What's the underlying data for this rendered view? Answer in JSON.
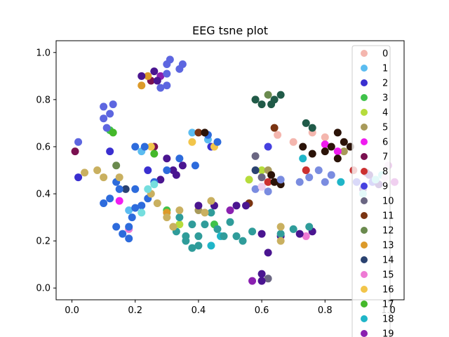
{
  "chart_data": {
    "type": "scatter",
    "title": "EEG tsne plot",
    "xlabel": "",
    "ylabel": "",
    "xlim": [
      -0.05,
      1.05
    ],
    "ylim": [
      -0.05,
      1.05
    ],
    "xticks": [
      "0.0",
      "0.2",
      "0.4",
      "0.6",
      "0.8",
      "1.0"
    ],
    "yticks": [
      "0.0",
      "0.2",
      "0.4",
      "0.6",
      "0.8",
      "1.0"
    ],
    "grid": false,
    "legend_position": "right",
    "series": [
      {
        "name": "0",
        "color": "#f4b6ae",
        "points": [
          [
            0.65,
            0.65
          ],
          [
            0.7,
            0.62
          ],
          [
            0.76,
            0.66
          ],
          [
            0.8,
            0.64
          ]
        ]
      },
      {
        "name": "1",
        "color": "#5bbcf0",
        "points": [
          [
            0.38,
            0.66
          ],
          [
            0.43,
            0.63
          ],
          [
            0.22,
            0.58
          ],
          [
            0.18,
            0.33
          ]
        ]
      },
      {
        "name": "2",
        "color": "#3a2fd0",
        "points": [
          [
            0.12,
            0.58
          ],
          [
            0.24,
            0.5
          ],
          [
            0.44,
            0.6
          ],
          [
            0.02,
            0.47
          ]
        ]
      },
      {
        "name": "3",
        "color": "#3fc24a",
        "points": [
          [
            0.12,
            0.67
          ],
          [
            0.3,
            0.33
          ],
          [
            0.45,
            0.27
          ]
        ]
      },
      {
        "name": "4",
        "color": "#b6dc3c",
        "points": [
          [
            0.56,
            0.46
          ],
          [
            0.6,
            0.5
          ],
          [
            0.34,
            0.27
          ]
        ]
      },
      {
        "name": "5",
        "color": "#a89a5a",
        "points": [
          [
            0.62,
            0.5
          ],
          [
            0.86,
            0.58
          ],
          [
            0.4,
            0.33
          ]
        ]
      },
      {
        "name": "6",
        "color": "#f01cf0",
        "points": [
          [
            0.8,
            0.61
          ],
          [
            0.84,
            0.58
          ],
          [
            0.15,
            0.37
          ]
        ]
      },
      {
        "name": "7",
        "color": "#7a1050",
        "points": [
          [
            0.25,
            0.88
          ],
          [
            0.26,
            0.6
          ],
          [
            0.93,
            0.49
          ],
          [
            0.01,
            0.58
          ]
        ]
      },
      {
        "name": "8",
        "color": "#cc3030",
        "points": [
          [
            0.89,
            0.5
          ],
          [
            0.74,
            0.5
          ],
          [
            0.62,
            0.45
          ]
        ]
      },
      {
        "name": "9",
        "color": "#4540e0",
        "points": [
          [
            0.9,
            0.45
          ],
          [
            0.95,
            0.45
          ],
          [
            0.62,
            0.6
          ]
        ]
      },
      {
        "name": "10",
        "color": "#6a6682",
        "points": [
          [
            0.6,
            0.47
          ],
          [
            0.62,
            0.04
          ],
          [
            0.58,
            0.56
          ]
        ]
      },
      {
        "name": "11",
        "color": "#7a3412",
        "points": [
          [
            0.64,
            0.68
          ],
          [
            0.4,
            0.66
          ],
          [
            0.56,
            0.36
          ]
        ]
      },
      {
        "name": "12",
        "color": "#6a8a4e",
        "points": [
          [
            0.58,
            0.8
          ],
          [
            0.62,
            0.82
          ],
          [
            0.14,
            0.52
          ]
        ]
      },
      {
        "name": "13",
        "color": "#dc9a2a",
        "points": [
          [
            0.24,
            0.9
          ],
          [
            0.22,
            0.86
          ],
          [
            0.3,
            0.32
          ]
        ]
      },
      {
        "name": "14",
        "color": "#2a4270",
        "points": [
          [
            0.17,
            0.42
          ],
          [
            0.58,
            0.5
          ]
        ]
      },
      {
        "name": "15",
        "color": "#ee7ad4",
        "points": [
          [
            0.6,
            0.03
          ],
          [
            0.74,
            0.22
          ],
          [
            0.18,
            0.25
          ]
        ]
      },
      {
        "name": "16",
        "color": "#f2c54a",
        "points": [
          [
            0.45,
            0.6
          ],
          [
            0.38,
            0.62
          ],
          [
            0.25,
            0.6
          ]
        ]
      },
      {
        "name": "17",
        "color": "#44b82a",
        "points": [
          [
            0.13,
            0.66
          ],
          [
            0.26,
            0.57
          ]
        ]
      },
      {
        "name": "18",
        "color": "#1fb5c8",
        "points": [
          [
            0.47,
            0.22
          ],
          [
            0.44,
            0.18
          ],
          [
            0.73,
            0.55
          ],
          [
            0.85,
            0.45
          ]
        ]
      },
      {
        "name": "19",
        "color": "#8a20b0",
        "points": [
          [
            0.28,
            0.9
          ],
          [
            0.57,
            0.03
          ],
          [
            0.5,
            0.33
          ]
        ]
      },
      {
        "name": "",
        "color": "#205a48",
        "points": [
          [
            0.6,
            0.78
          ],
          [
            0.63,
            0.78
          ],
          [
            0.58,
            0.8
          ],
          [
            0.74,
            0.7
          ],
          [
            0.76,
            0.68
          ],
          [
            0.64,
            0.8
          ],
          [
            0.66,
            0.82
          ]
        ]
      },
      {
        "name": "",
        "color": "#5d66e0",
        "points": [
          [
            0.31,
            0.97
          ],
          [
            0.3,
            0.95
          ],
          [
            0.3,
            0.91
          ],
          [
            0.3,
            0.86
          ],
          [
            0.35,
            0.95
          ],
          [
            0.28,
            0.85
          ],
          [
            0.34,
            0.93
          ],
          [
            0.13,
            0.78
          ],
          [
            0.12,
            0.74
          ],
          [
            0.1,
            0.77
          ],
          [
            0.1,
            0.72
          ],
          [
            0.11,
            0.68
          ],
          [
            0.02,
            0.62
          ]
        ]
      },
      {
        "name": "",
        "color": "#4a1590",
        "points": [
          [
            0.22,
            0.9
          ],
          [
            0.26,
            0.92
          ],
          [
            0.27,
            0.88
          ],
          [
            0.4,
            0.35
          ],
          [
            0.45,
            0.35
          ],
          [
            0.52,
            0.35
          ],
          [
            0.55,
            0.35
          ],
          [
            0.6,
            0.23
          ],
          [
            0.66,
            0.22
          ],
          [
            0.72,
            0.23
          ],
          [
            0.76,
            0.24
          ],
          [
            0.62,
            0.15
          ],
          [
            0.6,
            0.06
          ],
          [
            0.6,
            0.03
          ],
          [
            0.97,
            0.44
          ],
          [
            0.94,
            0.48
          ],
          [
            0.92,
            0.42
          ],
          [
            0.28,
            0.46
          ],
          [
            0.32,
            0.5
          ],
          [
            0.35,
            0.52
          ],
          [
            0.3,
            0.55
          ],
          [
            0.33,
            0.48
          ]
        ]
      },
      {
        "name": "",
        "color": "#2d6bdc",
        "points": [
          [
            0.18,
            0.26
          ],
          [
            0.16,
            0.23
          ],
          [
            0.14,
            0.26
          ],
          [
            0.18,
            0.21
          ],
          [
            0.19,
            0.3
          ],
          [
            0.2,
            0.34
          ],
          [
            0.22,
            0.35
          ],
          [
            0.24,
            0.38
          ],
          [
            0.2,
            0.42
          ],
          [
            0.26,
            0.45
          ],
          [
            0.3,
            0.5
          ],
          [
            0.34,
            0.55
          ],
          [
            0.43,
            0.65
          ],
          [
            0.46,
            0.62
          ],
          [
            0.39,
            0.52
          ],
          [
            0.15,
            0.42
          ],
          [
            0.14,
            0.45
          ],
          [
            0.1,
            0.36
          ],
          [
            0.12,
            0.38
          ],
          [
            0.2,
            0.6
          ],
          [
            0.23,
            0.6
          ]
        ]
      },
      {
        "name": "",
        "color": "#2f9c9a",
        "points": [
          [
            0.34,
            0.3
          ],
          [
            0.36,
            0.22
          ],
          [
            0.38,
            0.17
          ],
          [
            0.4,
            0.22
          ],
          [
            0.42,
            0.27
          ],
          [
            0.46,
            0.25
          ],
          [
            0.48,
            0.22
          ],
          [
            0.5,
            0.28
          ],
          [
            0.52,
            0.22
          ],
          [
            0.44,
            0.32
          ],
          [
            0.38,
            0.27
          ],
          [
            0.4,
            0.18
          ],
          [
            0.36,
            0.2
          ],
          [
            0.33,
            0.24
          ],
          [
            0.66,
            0.23
          ],
          [
            0.7,
            0.25
          ],
          [
            0.75,
            0.26
          ],
          [
            0.54,
            0.2
          ],
          [
            0.57,
            0.24
          ]
        ]
      },
      {
        "name": "",
        "color": "#c9b060",
        "points": [
          [
            0.34,
            0.33
          ],
          [
            0.32,
            0.26
          ],
          [
            0.3,
            0.3
          ],
          [
            0.25,
            0.4
          ],
          [
            0.27,
            0.36
          ],
          [
            0.04,
            0.49
          ],
          [
            0.08,
            0.5
          ],
          [
            0.1,
            0.47
          ],
          [
            0.15,
            0.47
          ],
          [
            0.66,
            0.2
          ],
          [
            0.66,
            0.26
          ],
          [
            0.42,
            0.32
          ],
          [
            0.44,
            0.37
          ]
        ]
      },
      {
        "name": "",
        "color": "#2b1308",
        "points": [
          [
            0.64,
            0.45
          ],
          [
            0.66,
            0.44
          ],
          [
            0.63,
            0.48
          ],
          [
            0.73,
            0.6
          ],
          [
            0.76,
            0.57
          ],
          [
            0.8,
            0.58
          ],
          [
            0.84,
            0.66
          ],
          [
            0.86,
            0.62
          ],
          [
            0.88,
            0.6
          ],
          [
            0.84,
            0.55
          ],
          [
            0.42,
            0.66
          ],
          [
            0.82,
            0.6
          ]
        ]
      },
      {
        "name": "",
        "color": "#7a8ce0",
        "points": [
          [
            0.6,
            0.43
          ],
          [
            0.58,
            0.42
          ],
          [
            0.62,
            0.41
          ],
          [
            0.66,
            0.46
          ],
          [
            0.72,
            0.45
          ],
          [
            0.75,
            0.47
          ],
          [
            0.8,
            0.45
          ],
          [
            0.82,
            0.48
          ],
          [
            0.78,
            0.5
          ]
        ]
      },
      {
        "name": "",
        "color": "#75dede",
        "points": [
          [
            0.96,
            0.46
          ],
          [
            0.98,
            0.48
          ],
          [
            0.92,
            0.4
          ],
          [
            0.26,
            0.44
          ],
          [
            0.24,
            0.42
          ],
          [
            0.22,
            0.32
          ]
        ]
      },
      {
        "name": "",
        "color": "#f0d0f0",
        "points": [
          [
            1.0,
            0.52
          ],
          [
            0.99,
            0.47
          ],
          [
            1.02,
            0.45
          ],
          [
            0.6,
            0.43
          ]
        ]
      }
    ]
  }
}
